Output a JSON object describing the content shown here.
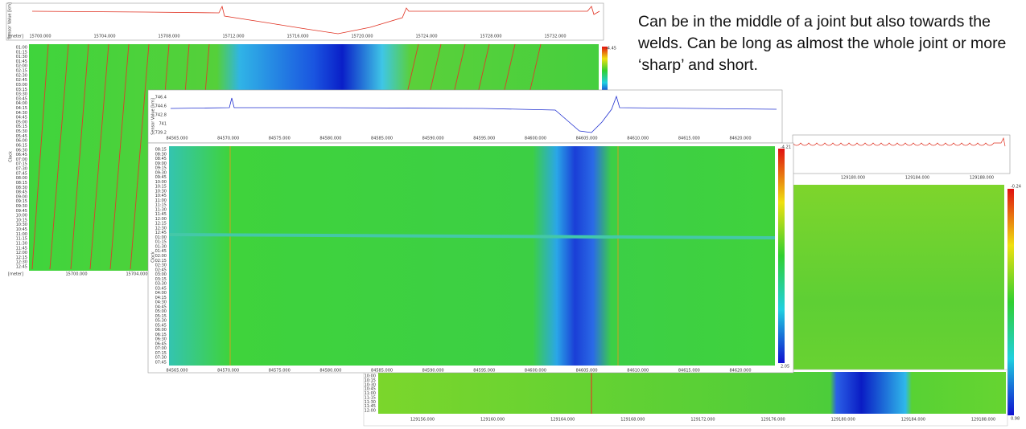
{
  "annotation": "Can be in the middle of a joint but also towards the welds. Can be long as almost the whole joint or more ‘sharp’ and short.",
  "panel_1": {
    "y_label": "Sensor Value [km]",
    "x_unit": "[meter]",
    "top_x_ticks": [
      "15700.000",
      "15704.000",
      "15708.000",
      "15712.000",
      "15716.000",
      "15720.000",
      "15724.000",
      "15728.000",
      "15732.000"
    ],
    "y_axis_label": "Clock",
    "times": [
      "01:00",
      "01:15",
      "01:30",
      "01:45",
      "02:00",
      "02:15",
      "02:30",
      "02:45",
      "03:00",
      "03:15",
      "03:30",
      "03:45",
      "04:00",
      "04:15",
      "04:30",
      "04:45",
      "05:00",
      "05:15",
      "05:30",
      "05:45",
      "06:00",
      "06:15",
      "06:30",
      "06:45",
      "07:00",
      "07:15",
      "07:30",
      "07:45",
      "08:00",
      "08:15",
      "08:30",
      "08:45",
      "09:00",
      "09:15",
      "09:30",
      "09:45",
      "10:00",
      "10:15",
      "10:30",
      "10:45",
      "11:00",
      "11:15",
      "11:30",
      "11:45",
      "12:00",
      "12:15",
      "12:30",
      "12:45"
    ],
    "bottom_x_unit": "[meter]",
    "bottom_x_ticks": [
      "15700.000",
      "15704.000"
    ],
    "colorbar_max": "-4.45"
  },
  "panel_2": {
    "y_label": "Sensor Value [km]",
    "y_ticks": [
      "746.4",
      "744.6",
      "742.8",
      "741",
      "739.2"
    ],
    "top_x_ticks": [
      "84565.000",
      "84570.000",
      "84575.000",
      "84580.000",
      "84585.000",
      "84590.000",
      "84595.000",
      "84600.000",
      "84605.000",
      "84610.000",
      "84615.000",
      "84620.000"
    ],
    "y_axis_label": "Clock",
    "times": [
      "08:15",
      "08:30",
      "08:45",
      "09:00",
      "09:15",
      "09:30",
      "09:45",
      "10:00",
      "10:15",
      "10:30",
      "10:45",
      "11:00",
      "11:15",
      "11:30",
      "11:45",
      "12:00",
      "12:15",
      "12:30",
      "12:45",
      "01:00",
      "01:15",
      "01:30",
      "01:45",
      "02:00",
      "02:15",
      "02:30",
      "02:45",
      "03:00",
      "03:15",
      "03:30",
      "03:45",
      "04:00",
      "04:15",
      "04:30",
      "04:45",
      "05:00",
      "05:15",
      "05:30",
      "05:45",
      "06:00",
      "06:15",
      "06:30",
      "06:45",
      "07:00",
      "07:15",
      "07:30",
      "07:45"
    ],
    "bottom_x_ticks": [
      "84565.000",
      "84570.000",
      "84575.000",
      "84580.000",
      "84585.000",
      "84590.000",
      "84595.000",
      "84600.000",
      "84605.000",
      "84610.000",
      "84615.000",
      "84620.000"
    ],
    "colorbar_max": "-4.21",
    "colorbar_min": "2.05"
  },
  "panel_3": {
    "top_x_ticks": [
      "129180.000",
      "129184.000",
      "129188.000"
    ],
    "colorbar_max": "-0.24",
    "colorbar_min": "0.98",
    "times": [
      "10:00",
      "10:15",
      "10:30",
      "10:45",
      "11:00",
      "11:15",
      "11:30",
      "11:45",
      "12:00"
    ],
    "bottom_x_ticks": [
      "129156.000",
      "129160.000",
      "129164.000",
      "129168.000",
      "129172.000",
      "129176.000",
      "129180.000",
      "129184.000",
      "129188.000"
    ]
  }
}
